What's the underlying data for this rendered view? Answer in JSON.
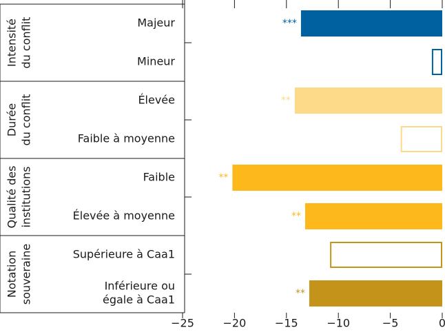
{
  "chart_data": {
    "type": "bar",
    "orientation": "horizontal",
    "groups": [
      {
        "label": [
          "Intensité",
          "du conflit"
        ],
        "size": 2
      },
      {
        "label": [
          "Durée",
          "du conflit"
        ],
        "size": 2
      },
      {
        "label": [
          "Qualité des",
          "institutions"
        ],
        "size": 2
      },
      {
        "label": [
          "Notation",
          "souveraine"
        ],
        "size": 2
      }
    ],
    "categories": [
      "Majeur",
      "Mineur",
      "Élevée",
      "Faible à moyenne",
      "Faible",
      "Élevée à moyenne",
      "Supérieure à Caa1",
      [
        "Inférieure ou",
        "égale à Caa1"
      ]
    ],
    "values": [
      -13.6,
      -1.0,
      -14.2,
      -4.0,
      -20.2,
      -13.2,
      -10.8,
      -12.8
    ],
    "significance": [
      "***",
      null,
      "**",
      null,
      "**",
      "**",
      null,
      "**"
    ],
    "colors": [
      "#0061a1",
      "#0061a1",
      "#fdd98a",
      "#fdd98a",
      "#fdb81c",
      "#fdb81c",
      "#c4941a",
      "#c4941a"
    ],
    "filled": [
      true,
      false,
      true,
      false,
      true,
      true,
      false,
      true
    ],
    "xlim": [
      -25,
      0
    ],
    "xticks": [
      {
        "value": -25,
        "label": "−25"
      },
      {
        "value": -20,
        "label": "−20"
      },
      {
        "value": -15,
        "label": "−15"
      },
      {
        "value": -10,
        "label": "−10"
      },
      {
        "value": -5,
        "label": "−5"
      },
      0
    ]
  }
}
